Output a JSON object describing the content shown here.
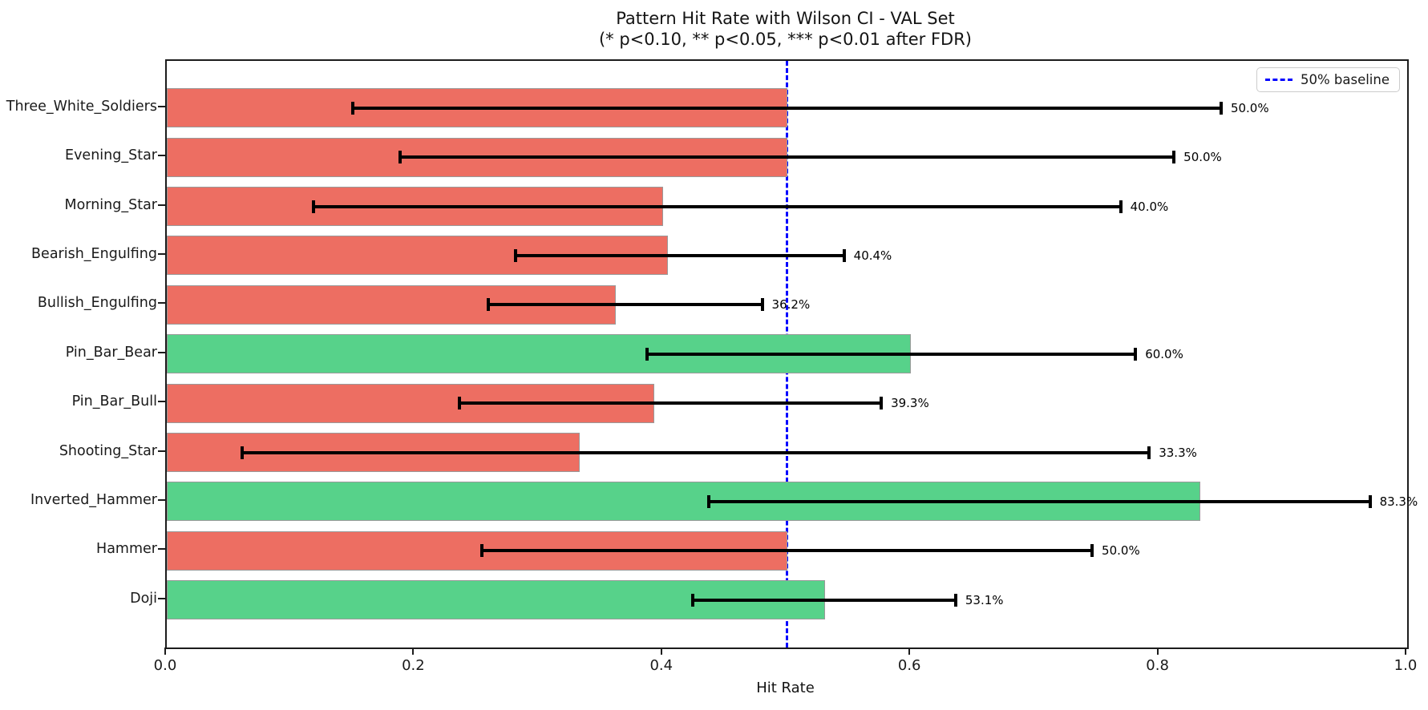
{
  "figure": {
    "title_line1": "Pattern Hit Rate with Wilson CI - VAL Set",
    "title_line2": "(* p<0.10, ** p<0.05, *** p<0.01 after FDR)",
    "xlabel": "Hit Rate"
  },
  "legend": {
    "label": "50% baseline"
  },
  "chart_data": {
    "type": "bar",
    "orientation": "horizontal",
    "title": "Pattern Hit Rate with Wilson CI - VAL Set",
    "subtitle": "(* p<0.10, ** p<0.05, *** p<0.01 after FDR)",
    "xlabel": "Hit Rate",
    "xlim": [
      0.0,
      1.0
    ],
    "xticks": [
      0.0,
      0.2,
      0.4,
      0.6,
      0.8,
      1.0
    ],
    "xtick_labels": [
      "0.0",
      "0.2",
      "0.4",
      "0.6",
      "0.8",
      "1.0"
    ],
    "grid": false,
    "legend_position": "upper-right",
    "baseline": {
      "value": 0.5,
      "label": "50% baseline",
      "color": "#0000ff",
      "style": "dashed"
    },
    "colors": {
      "bar_below_baseline": "#ed6e62",
      "bar_above_baseline": "#57d28a",
      "bar_edge": "#9a9a9a",
      "error_bar": "#000000"
    },
    "rows": [
      {
        "label": "Three_White_Soldiers",
        "value": 0.5,
        "ci_low": 0.15,
        "ci_high": 0.85,
        "value_label": "50.0%",
        "color": "red"
      },
      {
        "label": "Evening_Star",
        "value": 0.5,
        "ci_low": 0.188,
        "ci_high": 0.812,
        "value_label": "50.0%",
        "color": "red"
      },
      {
        "label": "Morning_Star",
        "value": 0.4,
        "ci_low": 0.118,
        "ci_high": 0.769,
        "value_label": "40.0%",
        "color": "red"
      },
      {
        "label": "Bearish_Engulfing",
        "value": 0.404,
        "ci_low": 0.281,
        "ci_high": 0.546,
        "value_label": "40.4%",
        "color": "red"
      },
      {
        "label": "Bullish_Engulfing",
        "value": 0.362,
        "ci_low": 0.259,
        "ci_high": 0.48,
        "value_label": "36.2%",
        "color": "red"
      },
      {
        "label": "Pin_Bar_Bear",
        "value": 0.6,
        "ci_low": 0.387,
        "ci_high": 0.781,
        "value_label": "60.0%",
        "color": "green"
      },
      {
        "label": "Pin_Bar_Bull",
        "value": 0.393,
        "ci_low": 0.236,
        "ci_high": 0.576,
        "value_label": "39.3%",
        "color": "red"
      },
      {
        "label": "Shooting_Star",
        "value": 0.333,
        "ci_low": 0.061,
        "ci_high": 0.792,
        "value_label": "33.3%",
        "color": "red"
      },
      {
        "label": "Inverted_Hammer",
        "value": 0.833,
        "ci_low": 0.437,
        "ci_high": 0.97,
        "value_label": "83.3%",
        "color": "green"
      },
      {
        "label": "Hammer",
        "value": 0.5,
        "ci_low": 0.254,
        "ci_high": 0.746,
        "value_label": "50.0%",
        "color": "red"
      },
      {
        "label": "Doji",
        "value": 0.531,
        "ci_low": 0.424,
        "ci_high": 0.636,
        "value_label": "53.1%",
        "color": "green"
      }
    ]
  }
}
